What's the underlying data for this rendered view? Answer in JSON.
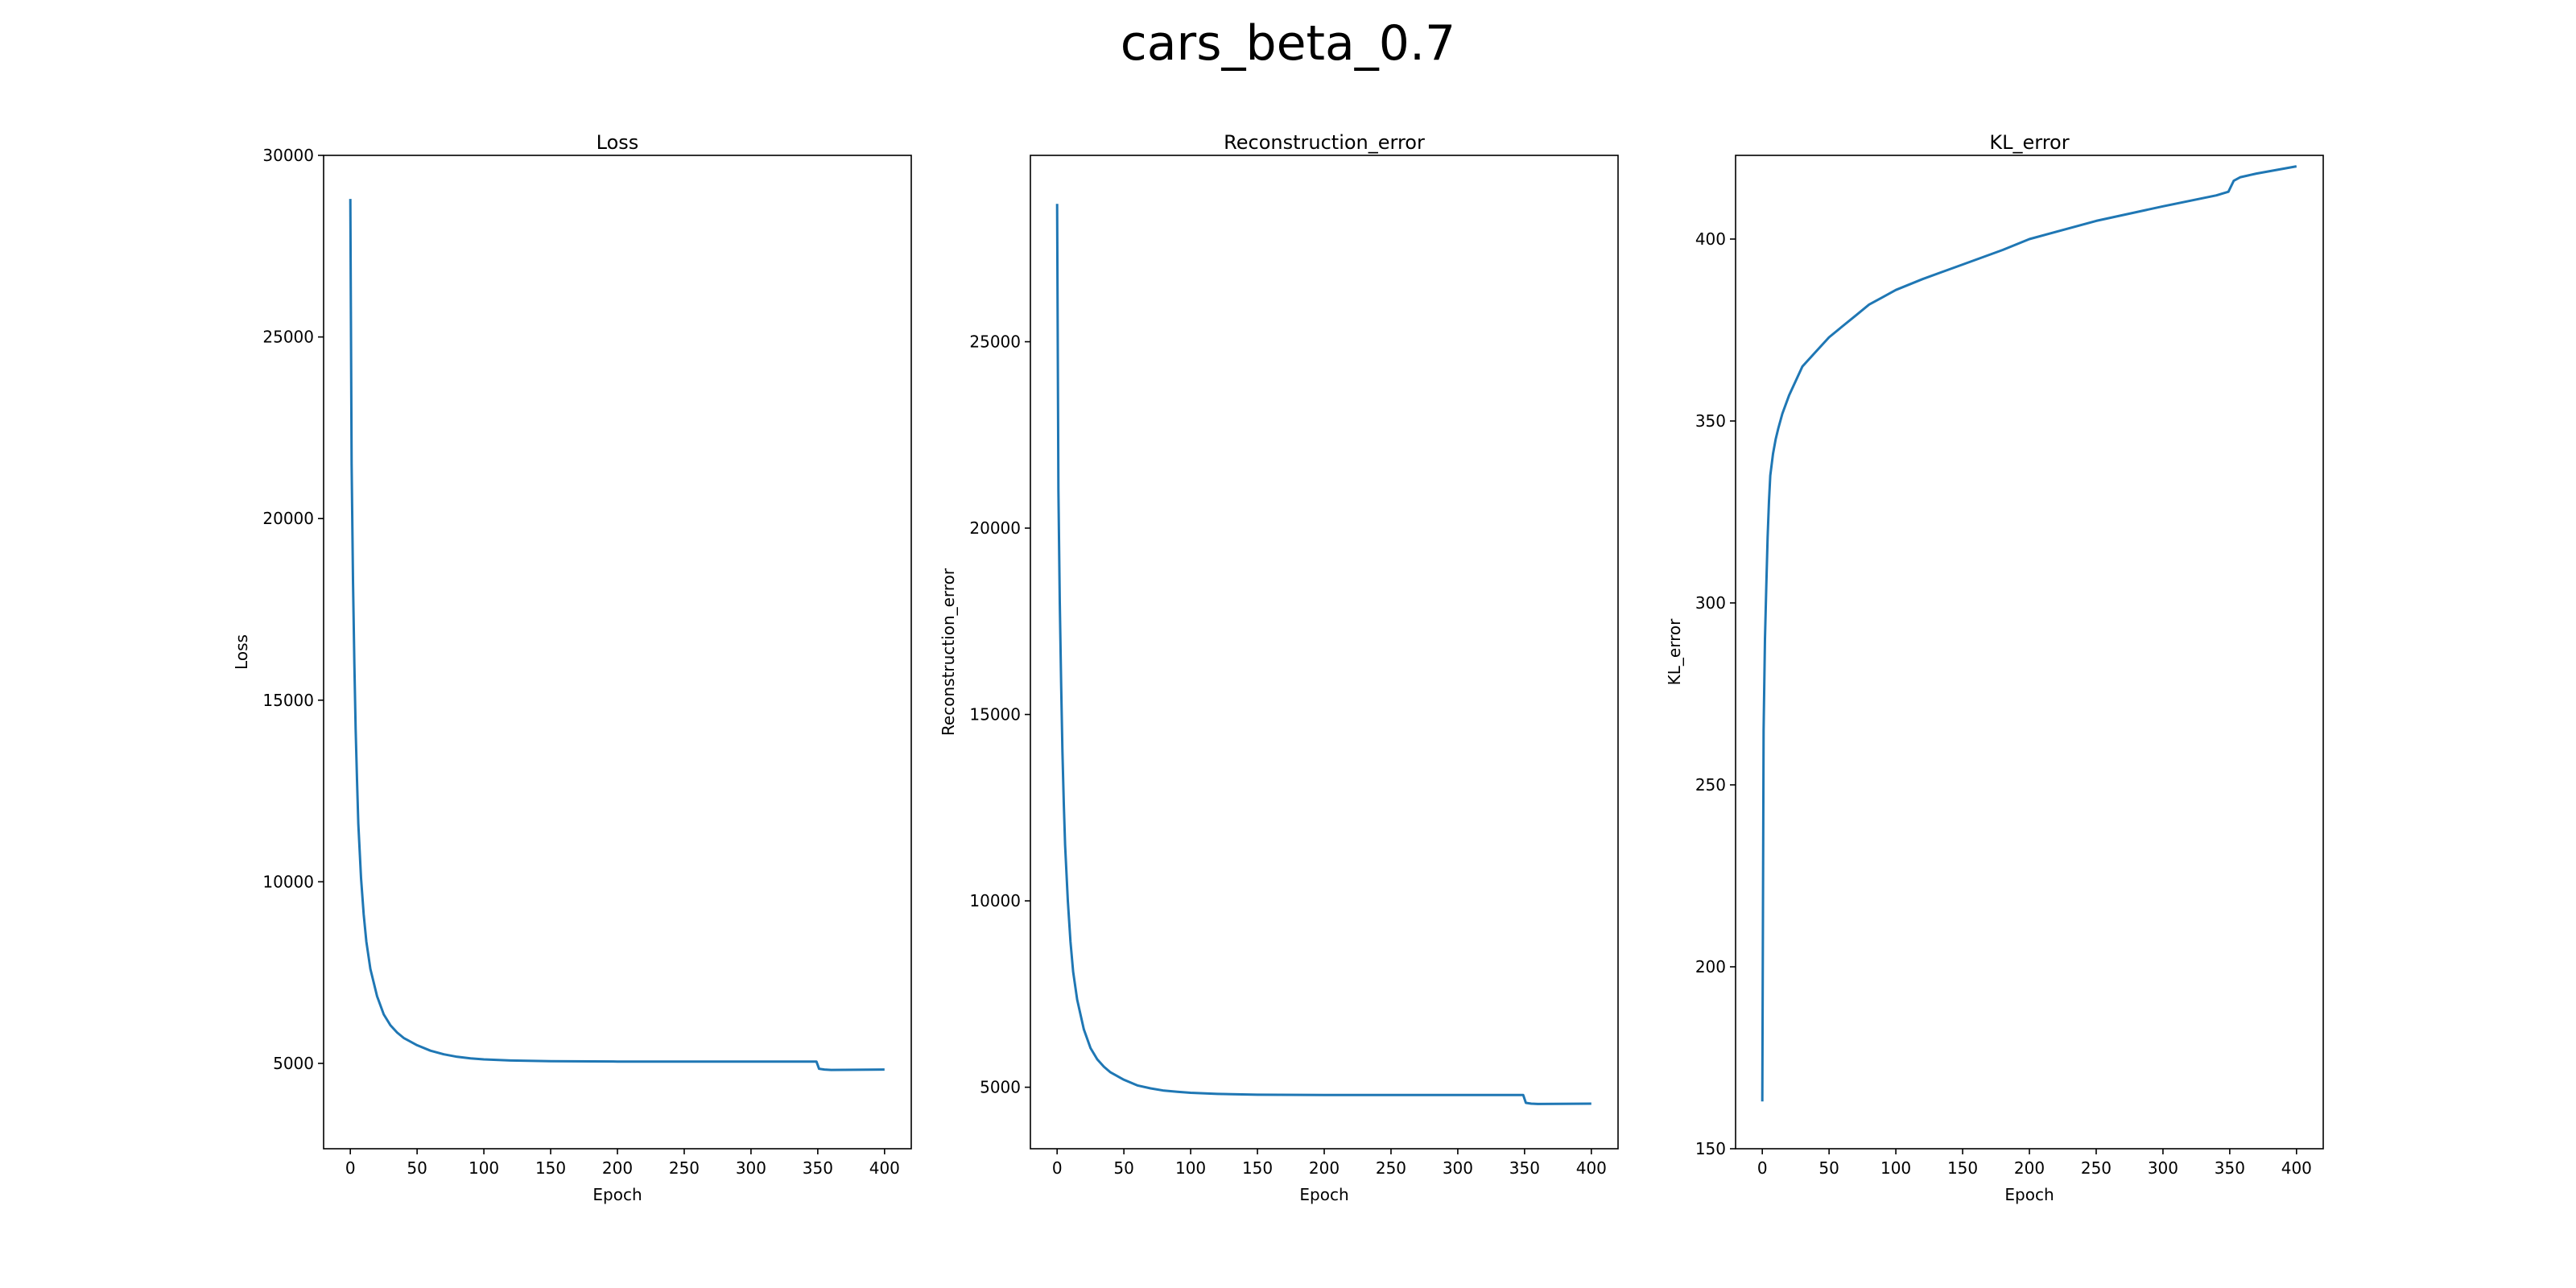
{
  "figure": {
    "suptitle": "cars_beta_0.7"
  },
  "colors": {
    "line": "#1f77b4",
    "axes": "#000000",
    "background": "#ffffff"
  },
  "chart_data": [
    {
      "type": "line",
      "title": "Loss",
      "xlabel": "Epoch",
      "ylabel": "Loss",
      "xlim": [
        -20,
        420
      ],
      "ylim": [
        2650,
        30000
      ],
      "xticks": [
        0,
        50,
        100,
        150,
        200,
        250,
        300,
        350,
        400
      ],
      "yticks": [
        5000,
        10000,
        15000,
        20000,
        25000,
        30000
      ],
      "grid": false,
      "series": [
        {
          "x": [
            0,
            1,
            2,
            3,
            4,
            5,
            6,
            8,
            10,
            12,
            15,
            20,
            25,
            30,
            35,
            40,
            50,
            60,
            70,
            80,
            90,
            100,
            120,
            150,
            200,
            250,
            300,
            349,
            351,
            355,
            360,
            400
          ],
          "y": [
            28800,
            21500,
            18300,
            16000,
            14200,
            12800,
            11600,
            10100,
            9100,
            8350,
            7600,
            6850,
            6350,
            6050,
            5850,
            5700,
            5500,
            5350,
            5250,
            5180,
            5140,
            5110,
            5080,
            5060,
            5050,
            5050,
            5050,
            5050,
            4850,
            4830,
            4820,
            4830
          ]
        }
      ]
    },
    {
      "type": "line",
      "title": "Reconstruction_error",
      "xlabel": "Epoch",
      "ylabel": "Reconstruction_error",
      "xlim": [
        -20,
        420
      ],
      "ylim": [
        3350,
        30000
      ],
      "xticks": [
        0,
        50,
        100,
        150,
        200,
        250,
        300,
        350,
        400
      ],
      "yticks": [
        5000,
        10000,
        15000,
        20000,
        25000
      ],
      "grid": false,
      "series": [
        {
          "x": [
            0,
            1,
            2,
            3,
            4,
            5,
            6,
            8,
            10,
            12,
            15,
            20,
            25,
            30,
            35,
            40,
            50,
            60,
            70,
            80,
            90,
            100,
            120,
            150,
            200,
            250,
            300,
            349,
            351,
            355,
            360,
            400
          ],
          "y": [
            28700,
            21000,
            18000,
            15800,
            14000,
            12600,
            11500,
            10000,
            8900,
            8100,
            7350,
            6550,
            6050,
            5750,
            5550,
            5400,
            5200,
            5050,
            4970,
            4910,
            4880,
            4850,
            4820,
            4800,
            4790,
            4790,
            4790,
            4790,
            4580,
            4560,
            4550,
            4560
          ]
        }
      ]
    },
    {
      "type": "line",
      "title": "KL_error",
      "xlabel": "Epoch",
      "ylabel": "KL_error",
      "xlim": [
        -20,
        420
      ],
      "ylim": [
        150,
        423
      ],
      "xticks": [
        0,
        50,
        100,
        150,
        200,
        250,
        300,
        350,
        400
      ],
      "yticks": [
        150,
        200,
        250,
        300,
        350,
        400
      ],
      "grid": false,
      "series": [
        {
          "x": [
            0,
            1,
            2,
            3,
            4,
            5,
            6,
            8,
            10,
            12,
            15,
            20,
            25,
            30,
            35,
            40,
            50,
            60,
            70,
            80,
            90,
            100,
            120,
            150,
            180,
            200,
            250,
            300,
            340,
            349,
            353,
            358,
            370,
            400
          ],
          "y": [
            163,
            265,
            290,
            305,
            318,
            328,
            335,
            341,
            345,
            348,
            352,
            357,
            361,
            365,
            367,
            369,
            373,
            376,
            379,
            382,
            384,
            386,
            389,
            393,
            397,
            400,
            405,
            409,
            412,
            413,
            416,
            417,
            418,
            420
          ]
        }
      ]
    }
  ]
}
